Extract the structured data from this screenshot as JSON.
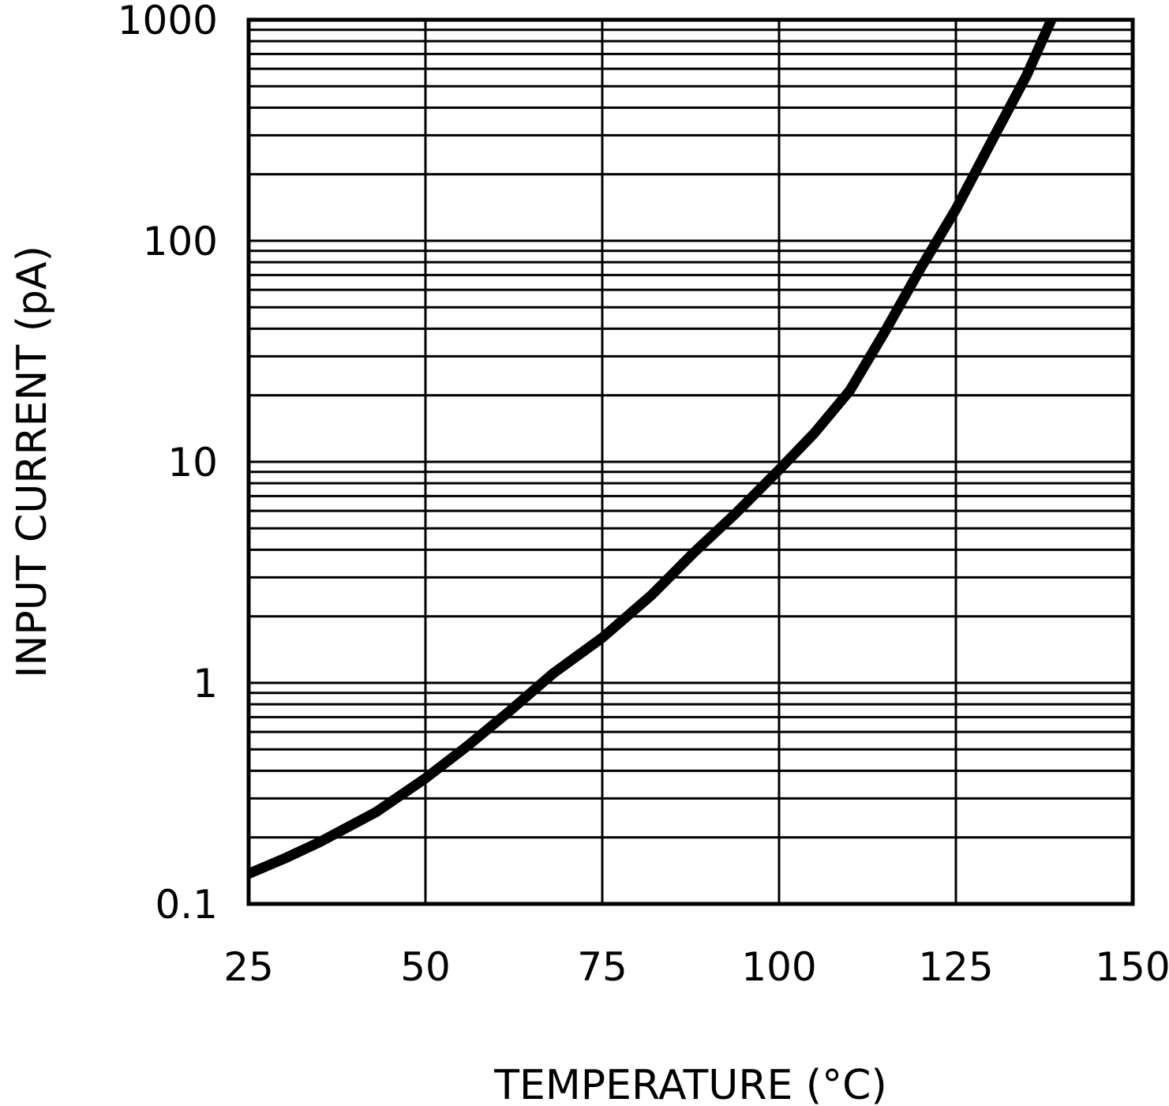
{
  "chart_data": {
    "type": "line",
    "title": "",
    "xlabel": "TEMPERATURE (°C)",
    "ylabel": "INPUT CURRENT (pA)",
    "xlim": [
      25,
      150
    ],
    "ylim": [
      0.1,
      1000
    ],
    "yscale": "log",
    "grid": true,
    "x_ticks": [
      "25",
      "50",
      "75",
      "100",
      "125",
      "150"
    ],
    "y_ticks": [
      "0.1",
      "1",
      "10",
      "100",
      "1000"
    ],
    "line_color": "#000000",
    "series": [
      {
        "x": [
          25,
          30,
          35,
          43,
          50,
          56,
          62,
          68,
          75,
          82,
          88,
          94,
          100,
          105,
          110,
          115,
          120,
          125,
          130,
          135,
          138.5
        ],
        "values": [
          0.137,
          0.16,
          0.19,
          0.26,
          0.37,
          0.52,
          0.75,
          1.1,
          1.6,
          2.5,
          3.9,
          5.9,
          9.2,
          13.5,
          21,
          39,
          75,
          139,
          280,
          560,
          1000
        ]
      }
    ]
  }
}
